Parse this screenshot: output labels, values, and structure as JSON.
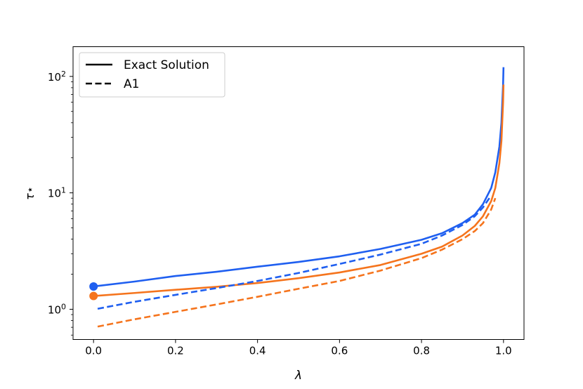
{
  "chart_data": {
    "type": "line",
    "xlabel": "λ",
    "ylabel": "τ⋆",
    "xlim": [
      -0.05,
      1.05
    ],
    "ylim": [
      0.55,
      180
    ],
    "yscale": "log",
    "grid": false,
    "x_ticks": [
      {
        "value": 0.0,
        "label": "0.0"
      },
      {
        "value": 0.2,
        "label": "0.2"
      },
      {
        "value": 0.4,
        "label": "0.4"
      },
      {
        "value": 0.6,
        "label": "0.6"
      },
      {
        "value": 0.8,
        "label": "0.8"
      },
      {
        "value": 1.0,
        "label": "1.0"
      }
    ],
    "y_ticks": [
      {
        "value": 1,
        "base": "10",
        "exp": "0"
      },
      {
        "value": 10,
        "base": "10",
        "exp": "1"
      },
      {
        "value": 100,
        "base": "10",
        "exp": "2"
      }
    ],
    "legend": {
      "position": "top-left",
      "entries": [
        {
          "label": "Exact Solution",
          "style": "solid"
        },
        {
          "label": "A1",
          "style": "dashed"
        }
      ]
    },
    "series": [
      {
        "color": "#1f5ff0",
        "style": "solid",
        "marker_at_start": true,
        "x": [
          0,
          0.1,
          0.2,
          0.3,
          0.4,
          0.5,
          0.6,
          0.7,
          0.8,
          0.85,
          0.9,
          0.93,
          0.95,
          0.97,
          0.98,
          0.99,
          0.995,
          0.999,
          1.0
        ],
        "y": [
          1.57,
          1.73,
          1.93,
          2.1,
          2.32,
          2.55,
          2.85,
          3.3,
          3.95,
          4.5,
          5.5,
          6.5,
          8.0,
          11.0,
          15.0,
          25.0,
          40.0,
          85.0,
          120.0
        ]
      },
      {
        "color": "#f5741d",
        "style": "solid",
        "marker_at_start": true,
        "x": [
          0,
          0.1,
          0.2,
          0.3,
          0.4,
          0.5,
          0.6,
          0.7,
          0.8,
          0.85,
          0.9,
          0.93,
          0.95,
          0.97,
          0.98,
          0.99,
          0.995,
          0.999,
          1.0
        ],
        "y": [
          1.3,
          1.38,
          1.47,
          1.56,
          1.68,
          1.85,
          2.07,
          2.4,
          3.0,
          3.45,
          4.3,
          5.2,
          6.3,
          8.5,
          11.0,
          18.0,
          28.0,
          60.0,
          85.0
        ]
      },
      {
        "color": "#1f5ff0",
        "style": "dashed",
        "marker_at_start": false,
        "x": [
          0.01,
          0.1,
          0.2,
          0.3,
          0.4,
          0.5,
          0.6,
          0.7,
          0.8,
          0.85,
          0.9,
          0.93,
          0.95,
          0.97
        ],
        "y": [
          1.01,
          1.16,
          1.33,
          1.52,
          1.75,
          2.05,
          2.45,
          2.95,
          3.65,
          4.3,
          5.3,
          6.3,
          7.5,
          9.5
        ]
      },
      {
        "color": "#f5741d",
        "style": "dashed",
        "marker_at_start": false,
        "x": [
          0.01,
          0.1,
          0.2,
          0.3,
          0.4,
          0.5,
          0.6,
          0.7,
          0.8,
          0.85,
          0.9,
          0.93,
          0.95,
          0.97,
          0.98
        ],
        "y": [
          0.71,
          0.82,
          0.95,
          1.1,
          1.28,
          1.5,
          1.75,
          2.15,
          2.75,
          3.25,
          4.0,
          4.7,
          5.5,
          7.2,
          9.0
        ]
      }
    ]
  }
}
